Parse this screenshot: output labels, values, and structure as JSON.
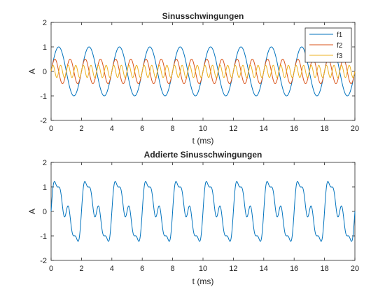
{
  "chart_data": [
    {
      "type": "line",
      "title": "Sinusschwingungen",
      "xlabel": "t (ms)",
      "ylabel": "A",
      "xlim": [
        0,
        20
      ],
      "ylim": [
        -2,
        2
      ],
      "xticks": [
        "0",
        "2",
        "4",
        "6",
        "8",
        "10",
        "12",
        "14",
        "16",
        "18",
        "20"
      ],
      "yticks": [
        "2",
        "1",
        "0",
        "-1",
        "-2"
      ],
      "grid": false,
      "legend_position": "top-right",
      "series": [
        {
          "name": "f1",
          "color": "#0072BD",
          "amplitude": 1.0,
          "frequency_khz": 0.5
        },
        {
          "name": "f2",
          "color": "#D95319",
          "amplitude": 0.5,
          "frequency_khz": 1.0
        },
        {
          "name": "f3",
          "color": "#EDB120",
          "amplitude": 0.25,
          "frequency_khz": 2.0
        }
      ]
    },
    {
      "type": "line",
      "title": "Addierte Sinusschwingungen",
      "xlabel": "t (ms)",
      "ylabel": "A",
      "xlim": [
        0,
        20
      ],
      "ylim": [
        -2,
        2
      ],
      "xticks": [
        "0",
        "2",
        "4",
        "6",
        "8",
        "10",
        "12",
        "14",
        "16",
        "18",
        "20"
      ],
      "yticks": [
        "2",
        "1",
        "0",
        "-1",
        "-2"
      ],
      "grid": false,
      "series": [
        {
          "color": "#0072BD",
          "sum_of": [
            "f1",
            "f2",
            "f3"
          ]
        }
      ]
    }
  ]
}
